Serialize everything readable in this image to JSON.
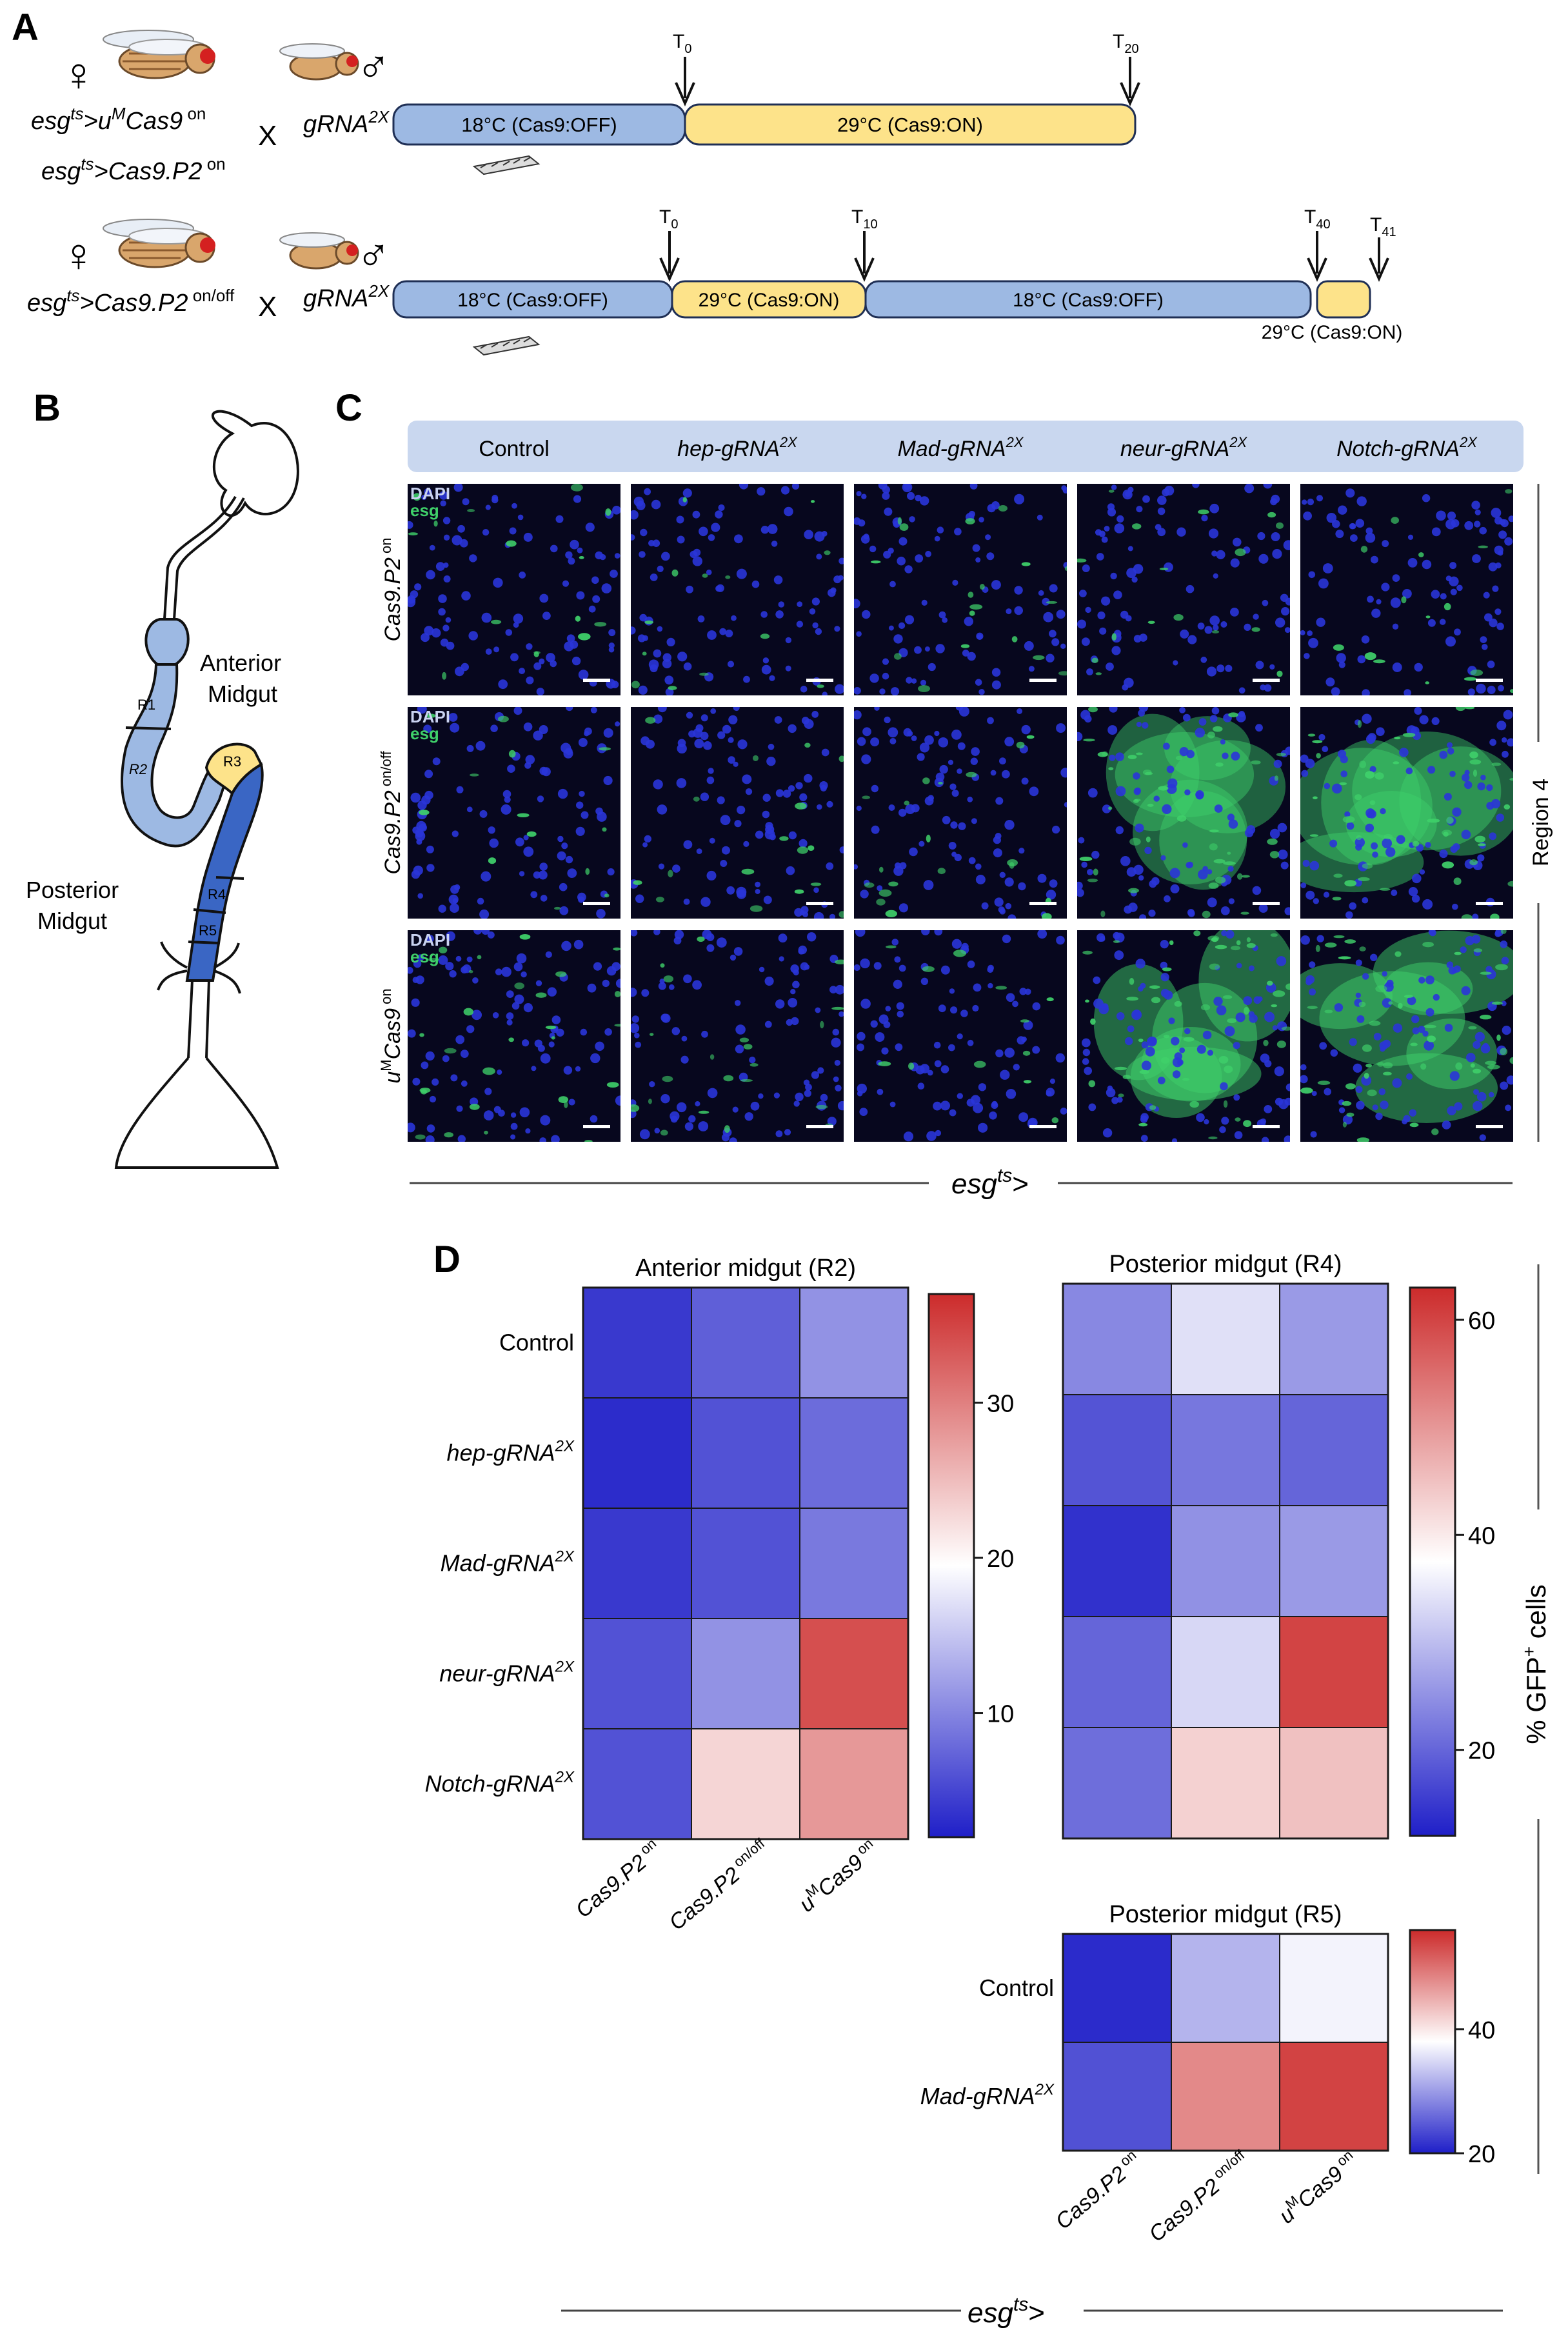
{
  "panel_letters": {
    "A": "A",
    "B": "B",
    "C": "C",
    "D": "D"
  },
  "colors": {
    "cold_phase": "#9db9e3",
    "hot_phase": "#fde38a",
    "micrograph_bg": "#07071e",
    "nuclei": "#2a35d8",
    "gfp": "#3fd06a",
    "header_band": "#c9d7ef",
    "heat_low": "#1f1fc8",
    "heat_mid": "#ffffff",
    "heat_high": "#cc2b2b"
  },
  "panel_a": {
    "row1": {
      "female_symbol": "♀",
      "male_symbol": "♂",
      "cross": "X",
      "female_line1": {
        "pre": "esg",
        "sup1": "ts",
        "mid": ">u",
        "sup2": "M",
        "post": "Cas9",
        "sup3": " on"
      },
      "female_line2": {
        "pre": "esg",
        "sup1": "ts",
        "post": ">Cas9.P2",
        "sup2": " on"
      },
      "male": {
        "base": "gRNA",
        "sup": "2X"
      },
      "phases": [
        {
          "label": "18°C (Cas9:OFF)",
          "state": "cold"
        },
        {
          "label": "29°C (Cas9:ON)",
          "state": "hot"
        }
      ],
      "timepoints": [
        {
          "base": "T",
          "sub": "0"
        },
        {
          "base": "T",
          "sub": "20"
        }
      ]
    },
    "row2": {
      "female_symbol": "♀",
      "male_symbol": "♂",
      "cross": "X",
      "female_line1": {
        "pre": "esg",
        "sup1": "ts",
        "post": ">Cas9.P2",
        "sup2": " on/off"
      },
      "male": {
        "base": "gRNA",
        "sup": "2X"
      },
      "phases": [
        {
          "label": "18°C (Cas9:OFF)",
          "state": "cold"
        },
        {
          "label": "29°C (Cas9:ON)",
          "state": "hot"
        },
        {
          "label": "18°C (Cas9:OFF)",
          "state": "cold"
        },
        {
          "label": "",
          "state": "hot"
        }
      ],
      "last_phase_label": "29°C (Cas9:ON)",
      "timepoints": [
        {
          "base": "T",
          "sub": "0"
        },
        {
          "base": "T",
          "sub": "10"
        },
        {
          "base": "T",
          "sub": "40"
        },
        {
          "base": "T",
          "sub": "41"
        }
      ]
    }
  },
  "panel_b": {
    "anterior": [
      "Anterior",
      "Midgut"
    ],
    "posterior": [
      "Posterior",
      "Midgut"
    ],
    "regions": [
      "R1",
      "R2",
      "R3",
      "R4",
      "R5"
    ]
  },
  "panel_c": {
    "columns": [
      {
        "base": "Control",
        "sup": ""
      },
      {
        "base": "hep-gRNA",
        "sup": "2X"
      },
      {
        "base": "Mad-gRNA",
        "sup": "2X"
      },
      {
        "base": "neur-gRNA",
        "sup": "2X"
      },
      {
        "base": "Notch-gRNA",
        "sup": "2X"
      }
    ],
    "rows": [
      {
        "pre": "Cas9.P2",
        "sup": " on"
      },
      {
        "pre": "Cas9.P2",
        "sup": " on/off"
      },
      {
        "pre": "u",
        "sup": "M",
        "post": "Cas9",
        "sup2": " on"
      }
    ],
    "stain_labels": [
      "DAPI",
      "esg"
    ],
    "side_label": "Region 4",
    "gfp_level": [
      [
        0.15,
        0.1,
        0.22,
        0.18,
        0.16
      ],
      [
        0.12,
        0.2,
        0.25,
        0.78,
        0.82
      ],
      [
        0.45,
        0.28,
        0.08,
        0.95,
        0.98
      ]
    ],
    "genotype_footer": {
      "base": "esg",
      "sup": "ts",
      "post": ">"
    }
  },
  "panel_d": {
    "heatmaps": [
      {
        "title": "Anterior midgut (R2)",
        "rows": [
          {
            "base": "Control",
            "sup": ""
          },
          {
            "base": "hep-gRNA",
            "sup": "2X"
          },
          {
            "base": "Mad-gRNA",
            "sup": "2X"
          },
          {
            "base": "neur-gRNA",
            "sup": "2X"
          },
          {
            "base": "Notch-gRNA",
            "sup": "2X"
          }
        ],
        "values": [
          [
            4,
            7,
            11
          ],
          [
            3,
            6,
            8
          ],
          [
            4,
            6,
            9
          ],
          [
            6,
            11,
            34
          ],
          [
            6,
            23,
            28
          ]
        ],
        "range": [
          2,
          37
        ],
        "ticks": [
          10,
          20,
          30
        ],
        "tick_labels": [
          "10",
          "20",
          "30"
        ]
      },
      {
        "title": "Posterior midgut (R4)",
        "values": [
          [
            24,
            34,
            26
          ],
          [
            18,
            22,
            20
          ],
          [
            14,
            25,
            26
          ],
          [
            20,
            33,
            60
          ],
          [
            21,
            43,
            45
          ]
        ],
        "range": [
          12,
          63
        ],
        "ticks": [
          20,
          40,
          60
        ],
        "tick_labels": [
          "20",
          "40",
          "60"
        ],
        "colorbar_label": {
          "pre": "% GFP",
          "sup": "+",
          "post": " cells"
        }
      },
      {
        "title": "Posterior midgut (R5)",
        "rows": [
          {
            "base": "Control",
            "sup": ""
          },
          {
            "base": "Mad-gRNA",
            "sup": "2X"
          }
        ],
        "values": [
          [
            21,
            32,
            37
          ],
          [
            24,
            48,
            54
          ]
        ],
        "range": [
          20,
          56
        ],
        "ticks": [
          20,
          40
        ],
        "tick_labels": [
          "20",
          "40"
        ]
      }
    ],
    "columns": [
      {
        "pre": "Cas9.P2",
        "sup": " on"
      },
      {
        "pre": "Cas9.P2",
        "sup": " on/off"
      },
      {
        "pre": "u",
        "sup": "M",
        "post": "Cas9",
        "sup2": " on"
      }
    ],
    "genotype_footer": {
      "base": "esg",
      "sup": "ts",
      "post": ">"
    }
  }
}
